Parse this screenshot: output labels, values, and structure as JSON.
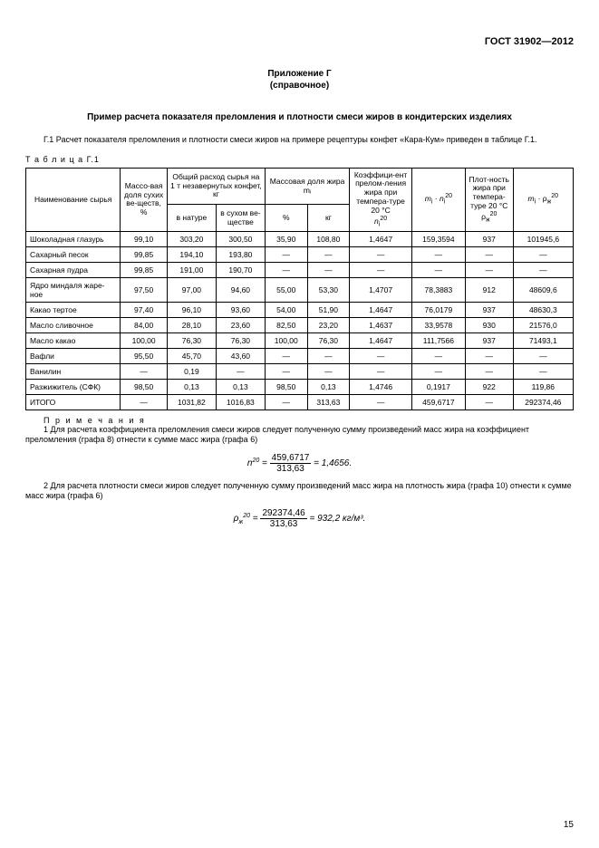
{
  "doc_header": "ГОСТ 31902—2012",
  "appendix": {
    "title": "Приложение Г",
    "subtitle": "(справочное)"
  },
  "section_title": "Пример расчета показателя преломления и плотности смеси жиров в кондитерских изделиях",
  "para_g1": "Г.1  Расчет показателя преломления и плотности смеси жиров на примере рецептуры конфет «Кара-Кум» приведен в таблице Г.1.",
  "table_label": "Т а б л и ц а  Г.1",
  "table": {
    "head": {
      "c1": "Наименование сырья",
      "c2": "Массо-вая доля сухих ве-ществ, %",
      "c3_group": "Общий расход сырья на 1 т незавернутых конфет, кг",
      "c3a": "в натуре",
      "c3b": "в сухом ве-ществе",
      "c4_group": "Массовая доля жира mᵢ",
      "c4a": "%",
      "c4b": "кг",
      "c5": "Коэффици-ент прелом-ления жира при темпера-туре 20 °С nᵢ²⁰",
      "c6": "mᵢ · nᵢ²⁰",
      "c7": "Плот-ность жира при темпера-туре 20 °С ρж²⁰",
      "c8": "mᵢ · ρж²⁰"
    },
    "rows": [
      {
        "name": "Шоколадная глазурь",
        "dry": "99,10",
        "nat": "303,20",
        "drykg": "300,50",
        "fat_pct": "35,90",
        "fat_kg": "108,80",
        "n20": "1,4647",
        "mn": "159,3594",
        "rho": "937",
        "mrho": "101945,6"
      },
      {
        "name": "Сахарный песок",
        "dry": "99,85",
        "nat": "194,10",
        "drykg": "193,80",
        "fat_pct": "—",
        "fat_kg": "—",
        "n20": "—",
        "mn": "—",
        "rho": "—",
        "mrho": "—"
      },
      {
        "name": "Сахарная пудра",
        "dry": "99,85",
        "nat": "191,00",
        "drykg": "190,70",
        "fat_pct": "—",
        "fat_kg": "—",
        "n20": "—",
        "mn": "—",
        "rho": "—",
        "mrho": "—"
      },
      {
        "name": "Ядро миндаля жаре-ное",
        "dry": "97,50",
        "nat": "97,00",
        "drykg": "94,60",
        "fat_pct": "55,00",
        "fat_kg": "53,30",
        "n20": "1,4707",
        "mn": "78,3883",
        "rho": "912",
        "mrho": "48609,6"
      },
      {
        "name": "Какао тертое",
        "dry": "97,40",
        "nat": "96,10",
        "drykg": "93,60",
        "fat_pct": "54,00",
        "fat_kg": "51,90",
        "n20": "1,4647",
        "mn": "76,0179",
        "rho": "937",
        "mrho": "48630,3"
      },
      {
        "name": "Масло сливочное",
        "dry": "84,00",
        "nat": "28,10",
        "drykg": "23,60",
        "fat_pct": "82,50",
        "fat_kg": "23,20",
        "n20": "1,4637",
        "mn": "33,9578",
        "rho": "930",
        "mrho": "21576,0"
      },
      {
        "name": "Масло какао",
        "dry": "100,00",
        "nat": "76,30",
        "drykg": "76,30",
        "fat_pct": "100,00",
        "fat_kg": "76,30",
        "n20": "1,4647",
        "mn": "111,7566",
        "rho": "937",
        "mrho": "71493,1"
      },
      {
        "name": "Вафли",
        "dry": "95,50",
        "nat": "45,70",
        "drykg": "43,60",
        "fat_pct": "—",
        "fat_kg": "—",
        "n20": "—",
        "mn": "—",
        "rho": "—",
        "mrho": "—"
      },
      {
        "name": "Ванилин",
        "dry": "—",
        "nat": "0,19",
        "drykg": "—",
        "fat_pct": "—",
        "fat_kg": "—",
        "n20": "—",
        "mn": "—",
        "rho": "—",
        "mrho": "—"
      },
      {
        "name": "Разжижитель (СФК)",
        "dry": "98,50",
        "nat": "0,13",
        "drykg": "0,13",
        "fat_pct": "98,50",
        "fat_kg": "0,13",
        "n20": "1,4746",
        "mn": "0,1917",
        "rho": "922",
        "mrho": "119,86"
      },
      {
        "name": "ИТОГО",
        "dry": "—",
        "nat": "1031,82",
        "drykg": "1016,83",
        "fat_pct": "—",
        "fat_kg": "313,63",
        "n20": "—",
        "mn": "459,6717",
        "rho": "—",
        "mrho": "292374,46"
      }
    ]
  },
  "notes": {
    "label": "П р и м е ч а н и я",
    "n1": "1  Для расчета коэффициента преломления смеси жиров следует полученную сумму произведений масс жира на коэффициент преломления (графа 8) отнести к сумме масс жира (графа 6)",
    "formula1": {
      "lhs": "n²⁰ =",
      "num": "459,6717",
      "den": "313,63",
      "rhs": "= 1,4656."
    },
    "n2": "2  Для расчета плотности смеси жиров следует полученную сумму произведений масс жира на плотность жира (графа 10) отнести к сумме масс жира (графа 6)",
    "formula2": {
      "lhs": "ρж²⁰ =",
      "num": "292374,46",
      "den": "313,63",
      "rhs": "= 932,2 кг/м³."
    }
  },
  "page_num": "15"
}
